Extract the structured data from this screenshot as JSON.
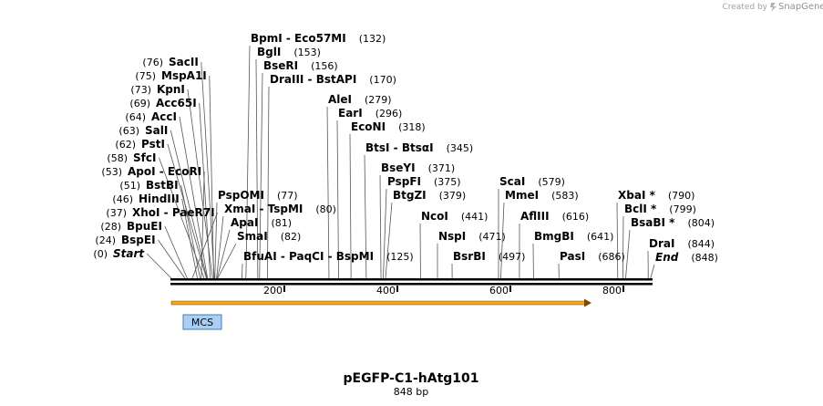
{
  "credit": {
    "created_by": "Created by",
    "brand": "SnapGene"
  },
  "map": {
    "title": "pEGFP-C1-hAtg101",
    "length_label": "848 bp",
    "length": 848,
    "ticks": [
      {
        "value": 200,
        "label": "200"
      },
      {
        "value": 400,
        "label": "400"
      },
      {
        "value": 600,
        "label": "600"
      },
      {
        "value": 800,
        "label": "800"
      }
    ],
    "feature": {
      "name": "MCS",
      "start": 1,
      "end": 90
    },
    "arrow": {
      "start": 1,
      "end": 745,
      "color": "#f5a623"
    },
    "left_sites": [
      {
        "paren": "(76)",
        "name": "SacII",
        "cut": 76
      },
      {
        "paren": "(75)",
        "name": "MspA1I",
        "cut": 75
      },
      {
        "paren": "(73)",
        "name": "KpnI",
        "cut": 73
      },
      {
        "paren": "(69)",
        "name": "Acc65I",
        "cut": 69
      },
      {
        "paren": "(64)",
        "name": "AccI",
        "cut": 64
      },
      {
        "paren": "(63)",
        "name": "SalI",
        "cut": 63
      },
      {
        "paren": "(62)",
        "name": "PstI",
        "cut": 62
      },
      {
        "paren": "(58)",
        "name": "SfcI",
        "cut": 58
      },
      {
        "paren": "(53)",
        "name": "ApoI",
        "sep": "-",
        "name2": "EcoRI",
        "cut": 53
      },
      {
        "paren": "(51)",
        "name": "BstBI",
        "cut": 51
      },
      {
        "paren": "(46)",
        "name": "HindIII",
        "cut": 46
      },
      {
        "paren": "(37)",
        "name": "XhoI",
        "sep": "-",
        "name2": "PaeR7I",
        "cut": 37
      },
      {
        "paren": "(28)",
        "name": "BpuEI",
        "cut": 28
      },
      {
        "paren": "(24)",
        "name": "BspEI",
        "cut": 24
      },
      {
        "paren": "(0)",
        "name": "Start",
        "cut": 0,
        "italic": true
      }
    ],
    "right_sites": [
      {
        "name": "BpmI",
        "sep": "-",
        "name2": "Eco57MI",
        "paren": "(132)",
        "cut": 132
      },
      {
        "name": "BglI",
        "paren": "(153)",
        "cut": 153
      },
      {
        "name": "BseRI",
        "paren": "(156)",
        "cut": 156
      },
      {
        "name": "DraIII",
        "sep": "-",
        "name2": "BstAPI",
        "paren": "(170)",
        "cut": 170
      },
      {
        "name": "PspOMI",
        "paren": "(77)",
        "cut": 77
      },
      {
        "name": "XmaI",
        "sep": "-",
        "name2": "TspMI",
        "paren": "(80)",
        "cut": 80
      },
      {
        "name": "ApaI",
        "paren": "(81)",
        "cut": 81
      },
      {
        "name": "SmaI",
        "paren": "(82)",
        "cut": 82
      },
      {
        "name": "BfuAI",
        "sep": "-",
        "name2": "PaqCI",
        "sep2": "-",
        "name3": "BspMI",
        "paren": "(125)",
        "cut": 125
      },
      {
        "name": "AleI",
        "paren": "(279)",
        "cut": 279
      },
      {
        "name": "EarI",
        "paren": "(296)",
        "cut": 296
      },
      {
        "name": "EcoNI",
        "paren": "(318)",
        "cut": 318
      },
      {
        "name": "BtsI",
        "sep": "-",
        "name2": "BtsαI",
        "paren": "(345)",
        "cut": 345
      },
      {
        "name": "BseYI",
        "paren": "(371)",
        "cut": 371
      },
      {
        "name": "PspFI",
        "paren": "(375)",
        "cut": 375
      },
      {
        "name": "BtgZI",
        "paren": "(379)",
        "cut": 379
      },
      {
        "name": "NcoI",
        "paren": "(441)",
        "cut": 441
      },
      {
        "name": "NspI",
        "paren": "(471)",
        "cut": 471
      },
      {
        "name": "BsrBI",
        "paren": "(497)",
        "cut": 497
      },
      {
        "name": "ScaI",
        "paren": "(579)",
        "cut": 579
      },
      {
        "name": "MmeI",
        "paren": "(583)",
        "cut": 583
      },
      {
        "name": "AflIII",
        "paren": "(616)",
        "cut": 616
      },
      {
        "name": "BmgBI",
        "paren": "(641)",
        "cut": 641
      },
      {
        "name": "PasI",
        "paren": "(686)",
        "cut": 686
      },
      {
        "name": "XbaI *",
        "paren": "(790)",
        "cut": 790
      },
      {
        "name": "BclI *",
        "paren": "(799)",
        "cut": 799
      },
      {
        "name": "BsaBI *",
        "paren": "(804)",
        "cut": 804
      },
      {
        "name": "DraI",
        "paren": "(844)",
        "cut": 844
      },
      {
        "name": "End",
        "paren": "(848)",
        "cut": 848,
        "italic": true
      }
    ]
  }
}
